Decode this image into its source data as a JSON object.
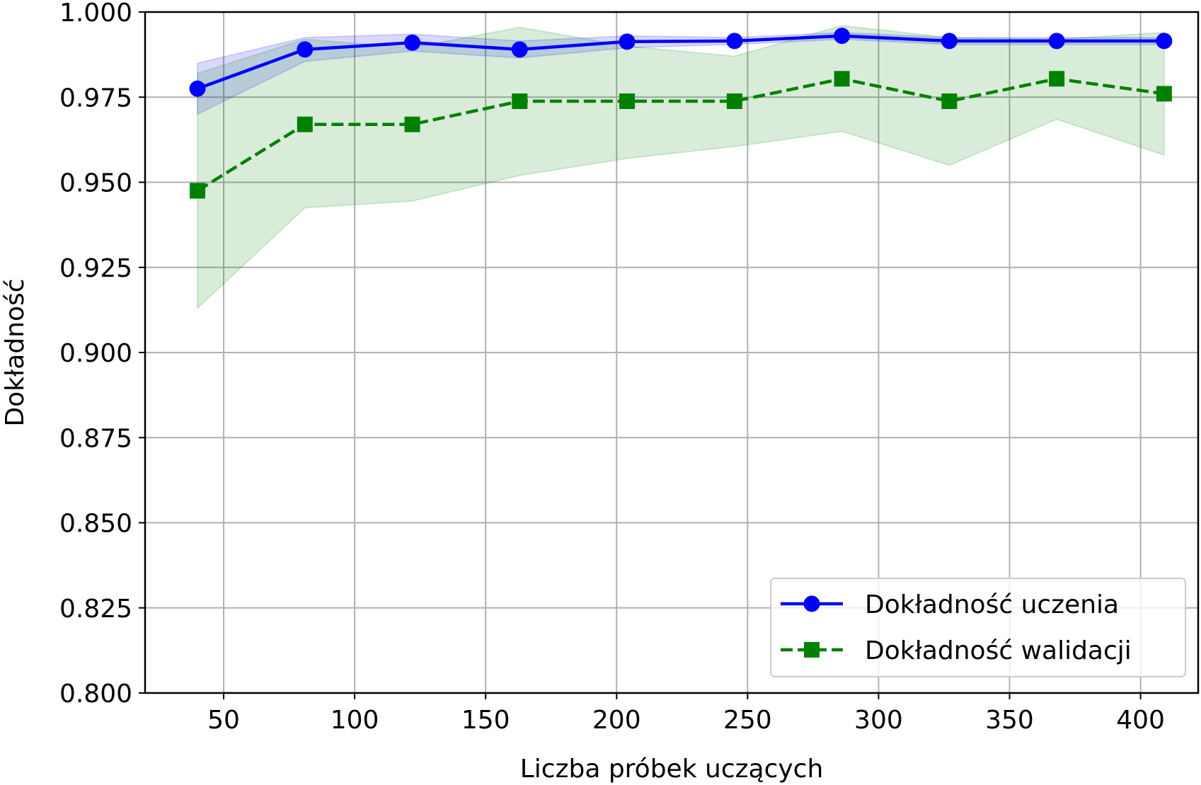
{
  "chart_data": {
    "type": "line",
    "title": "",
    "xlabel": "Liczba próbek uczących",
    "ylabel": "Dokładność",
    "xlim": [
      20,
      422
    ],
    "ylim": [
      0.8,
      1.0
    ],
    "x_ticks": [
      50,
      100,
      150,
      200,
      250,
      300,
      350,
      400
    ],
    "x_tick_labels": [
      "50",
      "100",
      "150",
      "200",
      "250",
      "300",
      "350",
      "400"
    ],
    "y_ticks": [
      0.8,
      0.825,
      0.85,
      0.875,
      0.9,
      0.925,
      0.95,
      0.975,
      1.0
    ],
    "y_tick_labels": [
      "0.800",
      "0.825",
      "0.850",
      "0.875",
      "0.900",
      "0.925",
      "0.950",
      "0.975",
      "1.000"
    ],
    "grid": true,
    "legend_position": "lower-right",
    "x": [
      40,
      81,
      122,
      163,
      204,
      245,
      286,
      327,
      368,
      409
    ],
    "series": [
      {
        "name": "Dokładność uczenia",
        "color": "#0000ff",
        "line_style": "solid",
        "marker": "circle",
        "values": [
          0.9775,
          0.989,
          0.991,
          0.989,
          0.9913,
          0.9915,
          0.993,
          0.9915,
          0.9915,
          0.9915
        ],
        "band_lower": [
          0.97,
          0.9855,
          0.9885,
          0.9865,
          0.9895,
          0.9905,
          0.992,
          0.9905,
          0.9905,
          0.9905
        ],
        "band_upper": [
          0.985,
          0.9925,
          0.9935,
          0.9915,
          0.993,
          0.9925,
          0.994,
          0.9925,
          0.9925,
          0.9925
        ],
        "band_color": "#0000ff"
      },
      {
        "name": "Dokładność walidacji",
        "color": "#008000",
        "line_style": "dashed",
        "marker": "square",
        "values": [
          0.9475,
          0.967,
          0.967,
          0.9738,
          0.9738,
          0.9738,
          0.9804,
          0.9738,
          0.9804,
          0.976
        ],
        "band_lower": [
          0.913,
          0.9425,
          0.9445,
          0.952,
          0.957,
          0.9605,
          0.965,
          0.955,
          0.9685,
          0.958
        ],
        "band_upper": [
          0.982,
          0.992,
          0.9895,
          0.9955,
          0.99,
          0.987,
          0.996,
          0.9925,
          0.992,
          0.994
        ],
        "band_color": "#008000"
      }
    ]
  }
}
